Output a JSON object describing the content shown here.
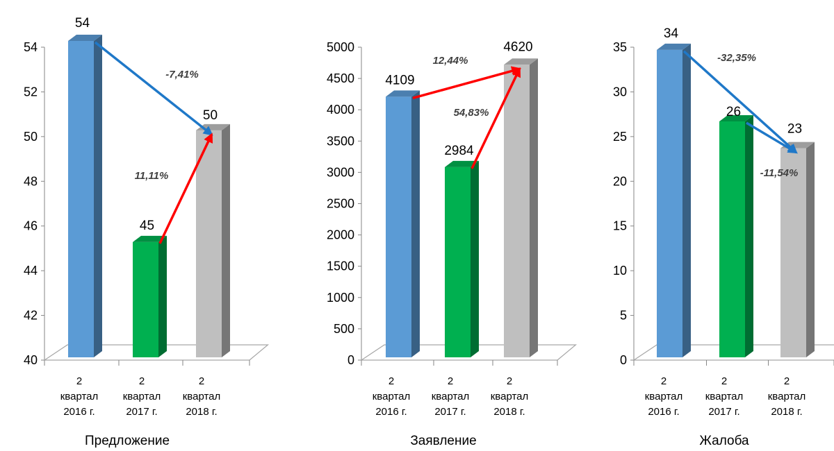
{
  "chart_data": [
    {
      "type": "bar",
      "title": "Предложение",
      "categories": [
        [
          "2",
          "квартал",
          "2016 г."
        ],
        [
          "2",
          "квартал",
          "2017 г."
        ],
        [
          "2",
          "квартал",
          "2018 г."
        ]
      ],
      "values": [
        54,
        45,
        50
      ],
      "ylim": [
        40,
        54
      ],
      "yticks": [
        40,
        42,
        44,
        46,
        48,
        50,
        52,
        54
      ],
      "bar_colors": [
        "#5b9bd5",
        "#00b050",
        "#bfbfbf"
      ],
      "annotations": [
        {
          "text": "-7,41%",
          "from": 0,
          "to": 2,
          "color": "#1f78c8"
        },
        {
          "text": "11,11%",
          "from": 1,
          "to": 2,
          "color": "#ff0000"
        }
      ]
    },
    {
      "type": "bar",
      "title": "Заявление",
      "categories": [
        [
          "2",
          "квартал",
          "2016 г."
        ],
        [
          "2",
          "квартал",
          "2017 г."
        ],
        [
          "2",
          "квартал",
          "2018 г."
        ]
      ],
      "values": [
        4109,
        2984,
        4620
      ],
      "ylim": [
        0,
        5000
      ],
      "yticks": [
        0,
        500,
        1000,
        1500,
        2000,
        2500,
        3000,
        3500,
        4000,
        4500,
        5000
      ],
      "bar_colors": [
        "#5b9bd5",
        "#00b050",
        "#bfbfbf"
      ],
      "annotations": [
        {
          "text": "12,44%",
          "from": 0,
          "to": 2,
          "color": "#ff0000"
        },
        {
          "text": "54,83%",
          "from": 1,
          "to": 2,
          "color": "#ff0000"
        }
      ]
    },
    {
      "type": "bar",
      "title": "Жалоба",
      "categories": [
        [
          "2",
          "квартал",
          "2016 г."
        ],
        [
          "2",
          "квартал",
          "2017 г."
        ],
        [
          "2",
          "квартал",
          "2018 г."
        ]
      ],
      "values": [
        34,
        26,
        23
      ],
      "ylim": [
        0,
        35
      ],
      "yticks": [
        0,
        5,
        10,
        15,
        20,
        25,
        30,
        35
      ],
      "bar_colors": [
        "#5b9bd5",
        "#00b050",
        "#bfbfbf"
      ],
      "annotations": [
        {
          "text": "-32,35%",
          "from": 0,
          "to": 2,
          "color": "#1f78c8"
        },
        {
          "text": "-11,54%",
          "from": 1,
          "to": 2,
          "color": "#1f78c8"
        }
      ]
    }
  ]
}
